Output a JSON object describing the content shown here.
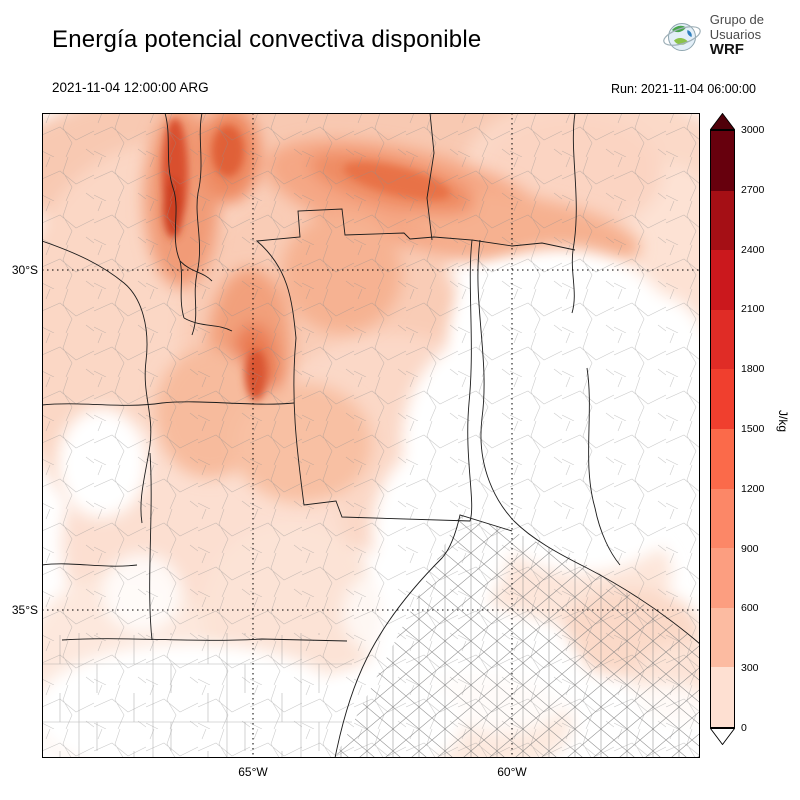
{
  "header": {
    "title": "Energía potencial convectiva disponible",
    "logo": {
      "line1": "Grupo de",
      "line2": "Usuarios",
      "line3": "WRF"
    }
  },
  "times": {
    "valid": "2021-11-04 12:00:00 ARG",
    "run": "Run: 2021-11-04 06:00:00"
  },
  "axes": {
    "y_ticks": [
      "30°S",
      "35°S"
    ],
    "x_ticks": [
      "65°W",
      "60°W"
    ]
  },
  "colorbar": {
    "unit": "J/kg",
    "tick_labels": [
      "3000",
      "2700",
      "2400",
      "2100",
      "1800",
      "1500",
      "1200",
      "900",
      "600",
      "300",
      "0"
    ],
    "segment_colors_top_to_bottom": [
      "#67000d",
      "#a50f15",
      "#cb181d",
      "#e02c26",
      "#f03f2e",
      "#fb6a4a",
      "#fc8767",
      "#fc9e80",
      "#fcbba1",
      "#fee0d2"
    ],
    "over_color": "#50000a",
    "under_color": "#ffffff"
  },
  "chart_data": {
    "type": "heatmap",
    "title": "Energía potencial convectiva disponible",
    "unit": "J/kg",
    "levels": [
      0,
      300,
      600,
      900,
      1200,
      1500,
      1800,
      2100,
      2400,
      2700,
      3000
    ],
    "colormap": "Reds",
    "x_tick_labels": [
      "65°W",
      "60°W"
    ],
    "y_tick_labels": [
      "30°S",
      "35°S"
    ],
    "valid_time": "2021-11-04 12:00:00 ARG",
    "run_time": "2021-11-04 06:00:00",
    "features": [
      {
        "region": "northwest vertical strip (around 66.5°W, 28-30°S)",
        "approx_value_jkg": 1200
      },
      {
        "region": "north-central diagonal band (28-29.5°S)",
        "approx_value_jkg": 900
      },
      {
        "region": "central-west sierras blob (around 65.5°W, 31-32.5°S)",
        "approx_value_jkg": 900
      },
      {
        "region": "broad light shading over north and west",
        "approx_value_jkg": 300
      },
      {
        "region": "center-east, southeast and far south (mostly white)",
        "approx_value_jkg": 0
      }
    ]
  }
}
